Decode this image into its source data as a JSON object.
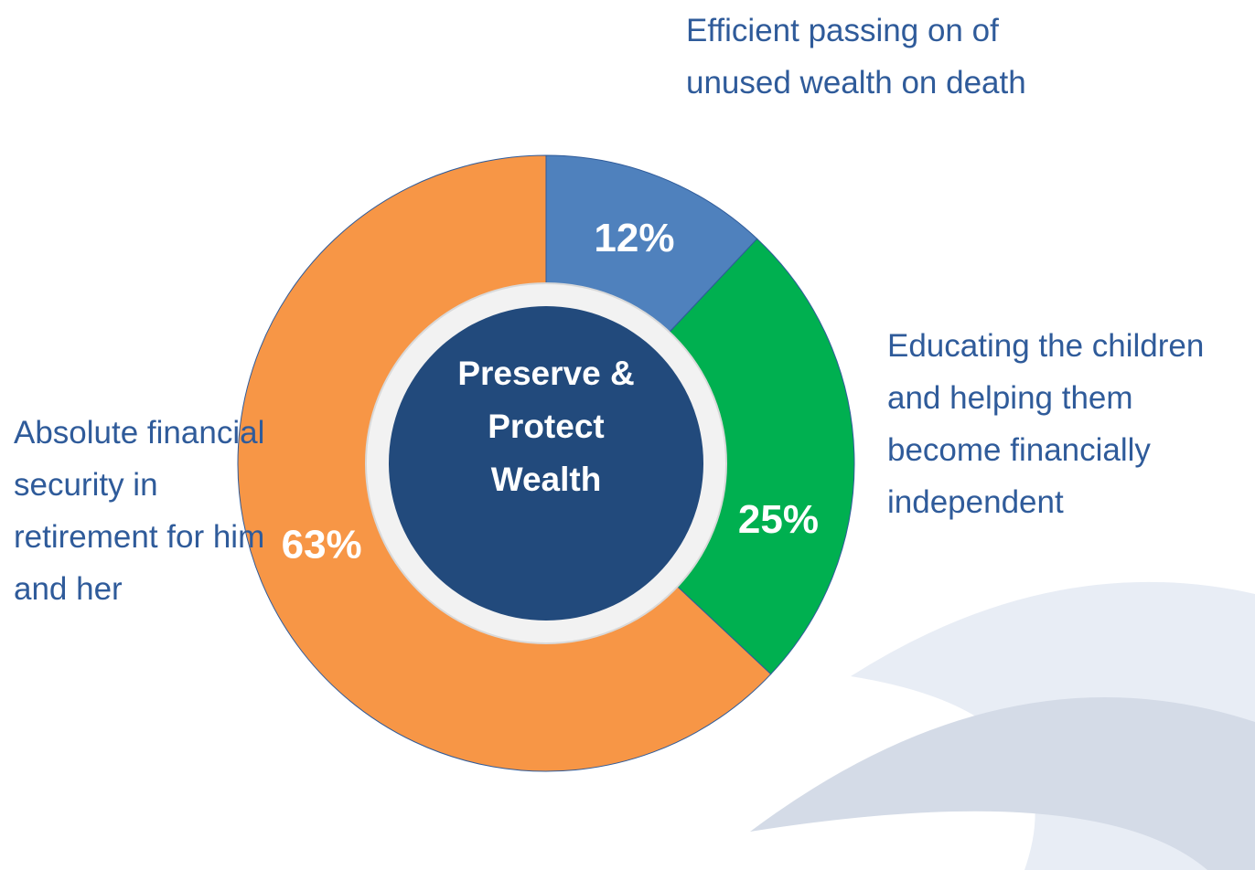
{
  "chart_data": {
    "type": "pie",
    "donut": true,
    "center_text": "Preserve & Protect Wealth",
    "categories": [
      "Efficient passing on of unused wealth on death",
      "Educating the children and helping them become financially independent",
      "Absolute financial security in retirement for him and her"
    ],
    "values": [
      12,
      25,
      63
    ],
    "value_labels": [
      "12%",
      "25%",
      "63%"
    ],
    "colors": [
      "#4f81bd",
      "#00b050",
      "#f79646"
    ],
    "center_color": "#224a7c"
  }
}
